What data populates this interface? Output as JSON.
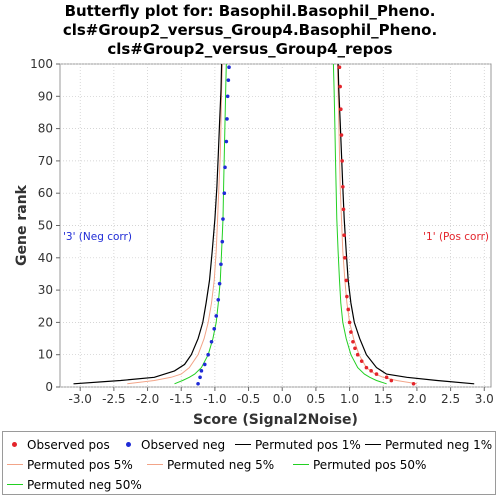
{
  "title_lines": [
    "Butterfly plot for: Basophil.Basophil_Pheno.",
    "cls#Group2_versus_Group4.Basophil_Pheno.",
    "cls#Group2_versus_Group4_repos"
  ],
  "annotations": {
    "neg": "'3' (Neg corr)",
    "pos": "'1' (Pos corr)"
  },
  "colors": {
    "observed_pos": "#e3242b",
    "observed_neg": "#1f2bd6",
    "permuted_1": "#000000",
    "permuted_5": "#f2a488",
    "permuted_50": "#22d022"
  },
  "chart_data": {
    "type": "line",
    "title": "Butterfly plot for: Basophil.Basophil_Pheno. cls#Group2_versus_Group4.Basophil_Pheno. cls#Group2_versus_Group4_repos",
    "xlabel": "Score (Signal2Noise)",
    "ylabel": "Gene rank",
    "xlim": [
      -3.3,
      3.1
    ],
    "ylim": [
      0,
      100
    ],
    "x_ticks": [
      -3.0,
      -2.5,
      -2.0,
      -1.5,
      -1.0,
      -0.5,
      0.0,
      0.5,
      1.0,
      1.5,
      2.0,
      2.5,
      3.0
    ],
    "y_ticks": [
      0,
      10,
      20,
      30,
      40,
      50,
      60,
      70,
      80,
      90,
      100
    ],
    "x_tick_labels": [
      "-3.0",
      "-2.5",
      "-2.0",
      "-1.5",
      "-1.0",
      "-0.5",
      "0.0",
      "0.5",
      "1.0",
      "1.5",
      "2.0",
      "2.5",
      "3.0"
    ],
    "y_tick_labels": [
      "0",
      "10",
      "20",
      "30",
      "40",
      "50",
      "60",
      "70",
      "80",
      "90",
      "100"
    ],
    "grid": true,
    "legend_position": "bottom",
    "series": [
      {
        "name": "Observed pos",
        "kind": "points",
        "points": [
          [
            1.95,
            1
          ],
          [
            1.62,
            2
          ],
          [
            1.55,
            3
          ],
          [
            1.4,
            4
          ],
          [
            1.32,
            5
          ],
          [
            1.25,
            6
          ],
          [
            1.18,
            8
          ],
          [
            1.12,
            10
          ],
          [
            1.08,
            12
          ],
          [
            1.05,
            14
          ],
          [
            1.02,
            17
          ],
          [
            1.0,
            20
          ],
          [
            0.98,
            24
          ],
          [
            0.96,
            28
          ],
          [
            0.95,
            33
          ],
          [
            0.93,
            40
          ],
          [
            0.92,
            47
          ],
          [
            0.91,
            55
          ],
          [
            0.9,
            62
          ],
          [
            0.89,
            70
          ],
          [
            0.88,
            78
          ],
          [
            0.87,
            86
          ],
          [
            0.86,
            93
          ],
          [
            0.85,
            99
          ]
        ]
      },
      {
        "name": "Observed neg",
        "kind": "points",
        "points": [
          [
            -1.25,
            1
          ],
          [
            -1.22,
            3
          ],
          [
            -1.2,
            5
          ],
          [
            -1.15,
            7
          ],
          [
            -1.1,
            10
          ],
          [
            -1.05,
            14
          ],
          [
            -1.01,
            18
          ],
          [
            -0.98,
            22
          ],
          [
            -0.95,
            27
          ],
          [
            -0.93,
            32
          ],
          [
            -0.91,
            38
          ],
          [
            -0.89,
            45
          ],
          [
            -0.88,
            52
          ],
          [
            -0.86,
            60
          ],
          [
            -0.85,
            68
          ],
          [
            -0.83,
            76
          ],
          [
            -0.82,
            83
          ],
          [
            -0.81,
            90
          ],
          [
            -0.8,
            95
          ],
          [
            -0.79,
            99
          ]
        ]
      },
      {
        "name": "Permuted pos 1%",
        "kind": "line",
        "points": [
          [
            2.85,
            1
          ],
          [
            2.3,
            2
          ],
          [
            1.85,
            3
          ],
          [
            1.55,
            4
          ],
          [
            1.4,
            6
          ],
          [
            1.25,
            10
          ],
          [
            1.15,
            15
          ],
          [
            1.07,
            20
          ],
          [
            1.02,
            26
          ],
          [
            0.98,
            33
          ],
          [
            0.95,
            42
          ],
          [
            0.92,
            52
          ],
          [
            0.9,
            62
          ],
          [
            0.88,
            72
          ],
          [
            0.86,
            82
          ],
          [
            0.84,
            92
          ],
          [
            0.83,
            100
          ]
        ]
      },
      {
        "name": "Permuted neg 1%",
        "kind": "line",
        "points": [
          [
            -3.1,
            1
          ],
          [
            -2.4,
            2
          ],
          [
            -1.9,
            3
          ],
          [
            -1.6,
            5
          ],
          [
            -1.45,
            7
          ],
          [
            -1.35,
            10
          ],
          [
            -1.25,
            15
          ],
          [
            -1.18,
            20
          ],
          [
            -1.13,
            26
          ],
          [
            -1.08,
            33
          ],
          [
            -1.04,
            42
          ],
          [
            -1.0,
            52
          ],
          [
            -0.97,
            62
          ],
          [
            -0.95,
            72
          ],
          [
            -0.93,
            82
          ],
          [
            -0.91,
            92
          ],
          [
            -0.9,
            100
          ]
        ]
      },
      {
        "name": "Permuted pos 5%",
        "kind": "line",
        "points": [
          [
            2.0,
            1
          ],
          [
            1.7,
            2
          ],
          [
            1.5,
            3
          ],
          [
            1.38,
            4
          ],
          [
            1.25,
            6
          ],
          [
            1.14,
            10
          ],
          [
            1.06,
            15
          ],
          [
            1.0,
            20
          ],
          [
            0.96,
            26
          ],
          [
            0.93,
            33
          ],
          [
            0.9,
            42
          ],
          [
            0.88,
            52
          ],
          [
            0.86,
            62
          ],
          [
            0.85,
            72
          ],
          [
            0.84,
            82
          ],
          [
            0.83,
            92
          ],
          [
            0.82,
            100
          ]
        ]
      },
      {
        "name": "Permuted neg 5%",
        "kind": "line",
        "points": [
          [
            -2.3,
            1
          ],
          [
            -1.9,
            2
          ],
          [
            -1.65,
            3
          ],
          [
            -1.5,
            4
          ],
          [
            -1.38,
            6
          ],
          [
            -1.25,
            10
          ],
          [
            -1.16,
            15
          ],
          [
            -1.1,
            20
          ],
          [
            -1.05,
            26
          ],
          [
            -1.01,
            33
          ],
          [
            -0.98,
            42
          ],
          [
            -0.96,
            52
          ],
          [
            -0.94,
            62
          ],
          [
            -0.92,
            72
          ],
          [
            -0.91,
            82
          ],
          [
            -0.9,
            92
          ],
          [
            -0.89,
            100
          ]
        ]
      },
      {
        "name": "Permuted pos 50%",
        "kind": "line",
        "points": [
          [
            1.55,
            1
          ],
          [
            1.4,
            2
          ],
          [
            1.3,
            3
          ],
          [
            1.22,
            4
          ],
          [
            1.12,
            6
          ],
          [
            1.02,
            10
          ],
          [
            0.95,
            15
          ],
          [
            0.9,
            20
          ],
          [
            0.87,
            26
          ],
          [
            0.85,
            33
          ],
          [
            0.83,
            42
          ],
          [
            0.81,
            52
          ],
          [
            0.8,
            62
          ],
          [
            0.79,
            72
          ],
          [
            0.78,
            82
          ],
          [
            0.77,
            92
          ],
          [
            0.76,
            100
          ]
        ]
      },
      {
        "name": "Permuted neg 50%",
        "kind": "line",
        "points": [
          [
            -1.6,
            1
          ],
          [
            -1.48,
            2
          ],
          [
            -1.38,
            3
          ],
          [
            -1.3,
            4
          ],
          [
            -1.2,
            6
          ],
          [
            -1.1,
            10
          ],
          [
            -1.03,
            15
          ],
          [
            -0.98,
            20
          ],
          [
            -0.95,
            26
          ],
          [
            -0.92,
            33
          ],
          [
            -0.9,
            42
          ],
          [
            -0.88,
            52
          ],
          [
            -0.87,
            62
          ],
          [
            -0.86,
            72
          ],
          [
            -0.85,
            82
          ],
          [
            -0.84,
            92
          ],
          [
            -0.83,
            100
          ]
        ]
      }
    ]
  }
}
